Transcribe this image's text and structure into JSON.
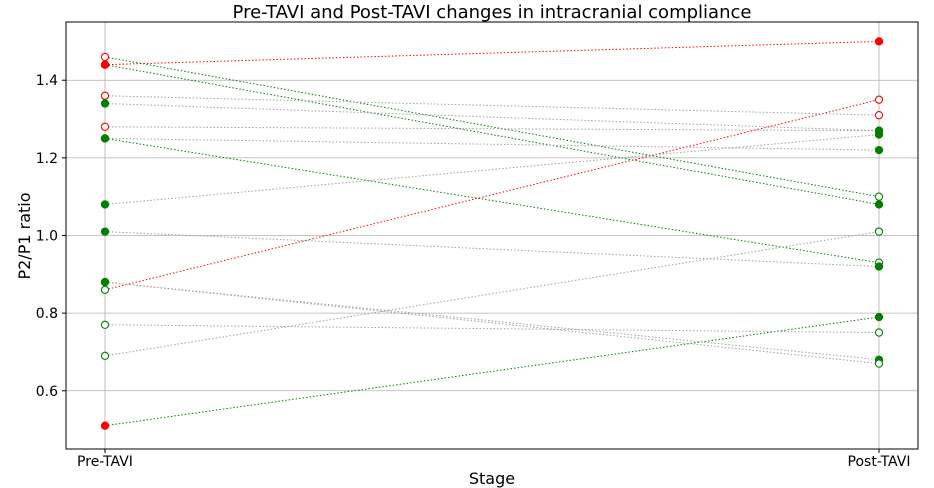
{
  "chart_data": {
    "type": "line",
    "title": "Pre-TAVI and Post-TAVI changes in intracranial compliance",
    "xlabel": "Stage",
    "ylabel": "P2/P1 ratio",
    "categories": [
      "Pre-TAVI",
      "Post-TAVI"
    ],
    "ylim": [
      0.45,
      1.55
    ],
    "yticks": [
      0.6,
      0.8,
      1.0,
      1.2,
      1.4
    ],
    "ytick_labels": [
      "0.6",
      "0.8",
      "1.0",
      "1.2",
      "1.4"
    ],
    "grid": true,
    "colors": {
      "increase": "#ff0000",
      "decrease": "#008000",
      "unchanged": "#a0a0a0"
    },
    "series": [
      {
        "values": [
          1.44,
          1.5
        ],
        "line": "increase",
        "pre_filled": true,
        "post_filled": true,
        "pre_color": "#ff0000",
        "post_color": "#ff0000"
      },
      {
        "values": [
          0.86,
          1.35
        ],
        "line": "increase",
        "pre_filled": false,
        "post_filled": false,
        "pre_color": "#008000",
        "post_color": "#ff0000"
      },
      {
        "values": [
          1.46,
          1.1
        ],
        "line": "decrease",
        "pre_filled": false,
        "post_filled": false,
        "pre_color": "#ff0000",
        "post_color": "#008000"
      },
      {
        "values": [
          1.44,
          1.08
        ],
        "line": "decrease",
        "pre_filled": true,
        "post_filled": true,
        "pre_color": "#ff0000",
        "post_color": "#008000"
      },
      {
        "values": [
          1.25,
          0.93
        ],
        "line": "decrease",
        "pre_filled": true,
        "post_filled": false,
        "pre_color": "#ff0000",
        "post_color": "#008000"
      },
      {
        "values": [
          0.51,
          0.79
        ],
        "line": "decrease",
        "pre_filled": true,
        "post_filled": true,
        "pre_color": "#ff0000",
        "post_color": "#008000"
      },
      {
        "values": [
          1.36,
          1.31
        ],
        "line": "unchanged",
        "pre_filled": false,
        "post_filled": false,
        "pre_color": "#ff0000",
        "post_color": "#ff0000"
      },
      {
        "values": [
          1.34,
          1.27
        ],
        "line": "unchanged",
        "pre_filled": true,
        "post_filled": false,
        "pre_color": "#008000",
        "post_color": "#ff0000"
      },
      {
        "values": [
          1.28,
          1.27
        ],
        "line": "unchanged",
        "pre_filled": false,
        "post_filled": true,
        "pre_color": "#ff0000",
        "post_color": "#008000"
      },
      {
        "values": [
          1.25,
          1.22
        ],
        "line": "unchanged",
        "pre_filled": true,
        "post_filled": true,
        "pre_color": "#008000",
        "post_color": "#008000"
      },
      {
        "values": [
          1.08,
          1.26
        ],
        "line": "unchanged",
        "pre_filled": true,
        "post_filled": true,
        "pre_color": "#008000",
        "post_color": "#008000"
      },
      {
        "values": [
          1.01,
          0.92
        ],
        "line": "unchanged",
        "pre_filled": true,
        "post_filled": true,
        "pre_color": "#008000",
        "post_color": "#008000"
      },
      {
        "values": [
          0.88,
          0.68
        ],
        "line": "unchanged",
        "pre_filled": true,
        "post_filled": true,
        "pre_color": "#008000",
        "post_color": "#008000"
      },
      {
        "values": [
          0.88,
          0.67
        ],
        "line": "unchanged",
        "pre_filled": true,
        "post_filled": false,
        "pre_color": "#008000",
        "post_color": "#008000"
      },
      {
        "values": [
          0.77,
          0.75
        ],
        "line": "unchanged",
        "pre_filled": false,
        "post_filled": false,
        "pre_color": "#008000",
        "post_color": "#008000"
      },
      {
        "values": [
          0.69,
          1.01
        ],
        "line": "unchanged",
        "pre_filled": false,
        "post_filled": false,
        "pre_color": "#008000",
        "post_color": "#008000"
      }
    ]
  }
}
